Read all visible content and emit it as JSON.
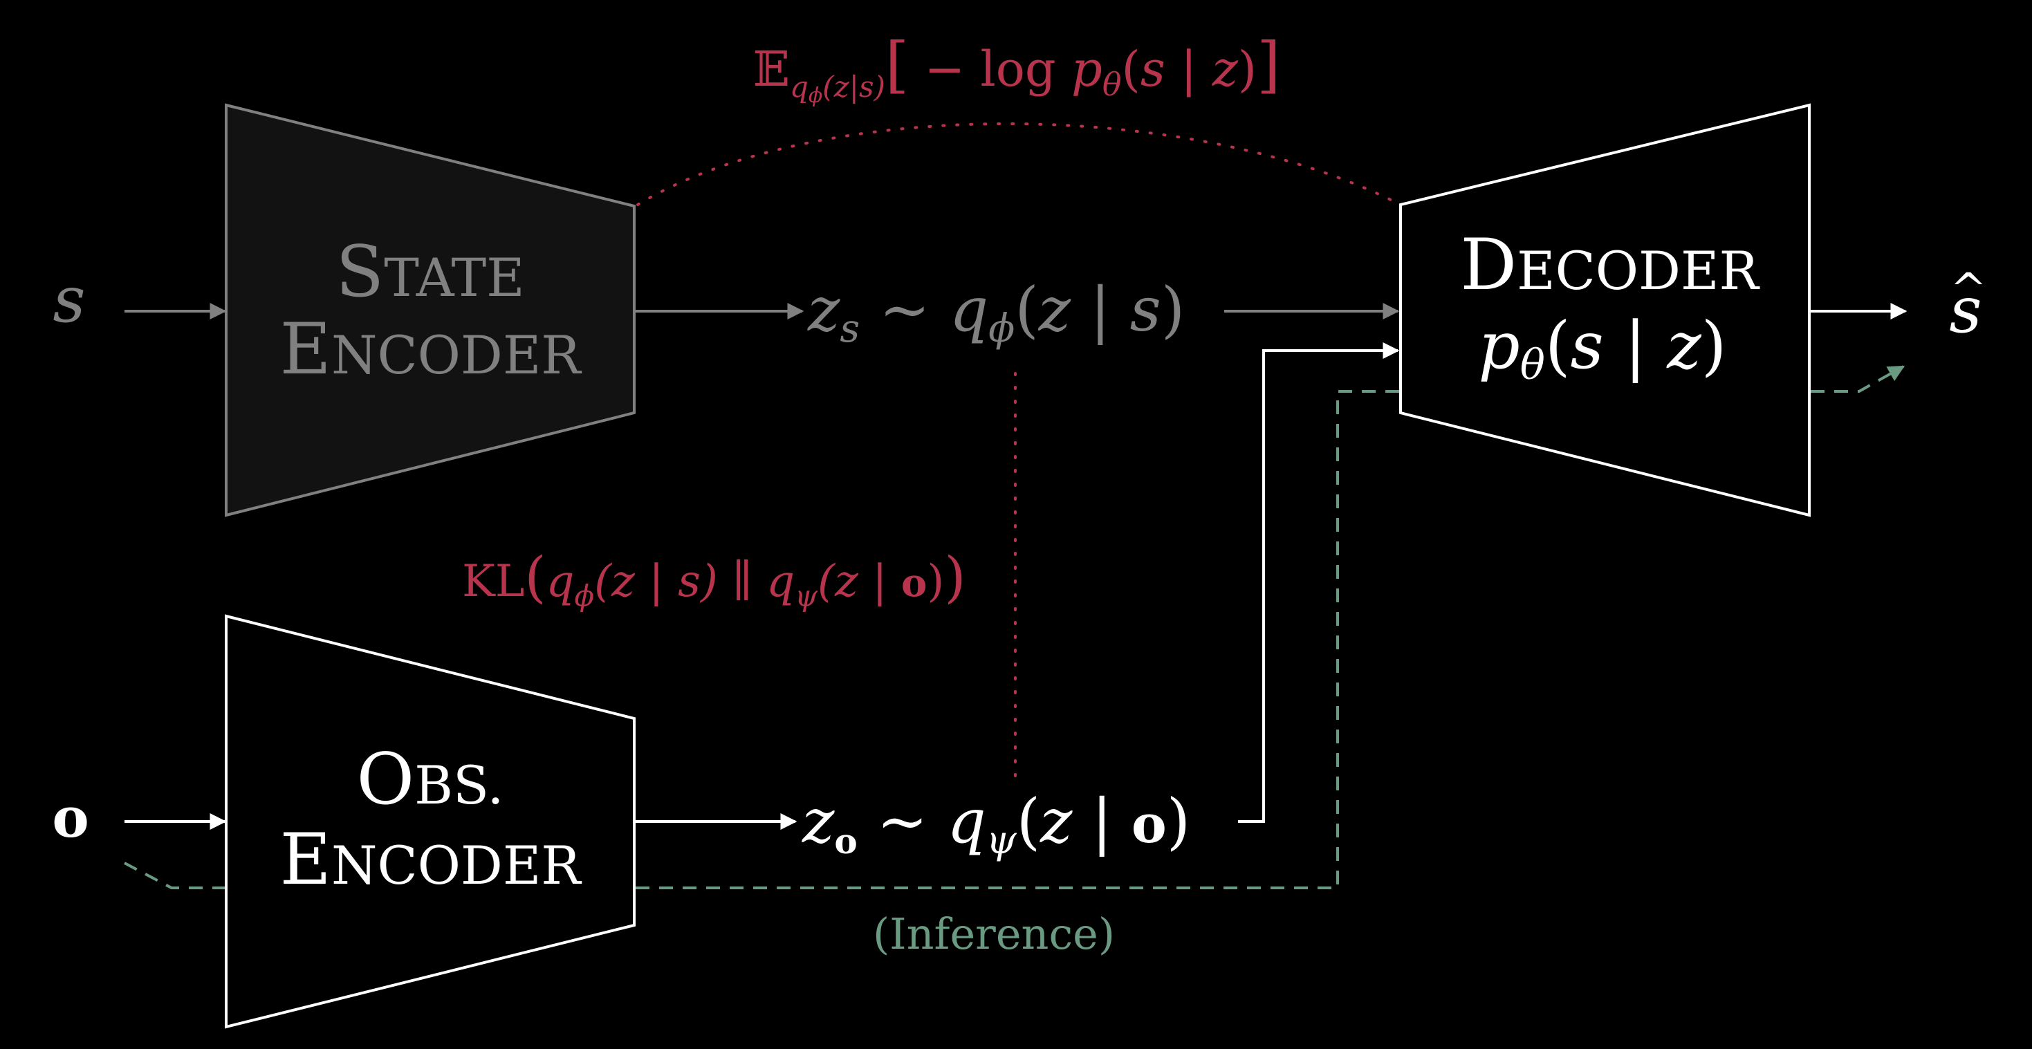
{
  "colors": {
    "background": "#000000",
    "active": "#ffffff",
    "inactive": "#808080",
    "state_encoder_fill": "#121212",
    "loss": "#b8344c",
    "inference": "#6a9a82"
  },
  "inputs": {
    "state": "s",
    "observation": "o"
  },
  "state_encoder": {
    "line1_first": "S",
    "line1_rest": "TATE",
    "line2_first": "E",
    "line2_rest": "NCODER"
  },
  "obs_encoder": {
    "line1_first": "O",
    "line1_rest": "BS.",
    "line2_first": "E",
    "line2_rest": "NCODER"
  },
  "decoder": {
    "line1_first": "D",
    "line1_rest": "ECODER",
    "p": "p",
    "p_sub": "θ",
    "args_open": "(",
    "args_s": "s",
    "args_bar": " | ",
    "args_z": "z",
    "args_close": ")"
  },
  "latent_state": {
    "z": "z",
    "z_sub": "s",
    "tilde": " ∼ ",
    "q": "q",
    "q_sub": "ϕ",
    "open": "(",
    "z2": "z",
    "bar": " | ",
    "cond": "s",
    "close": ")"
  },
  "latent_obs": {
    "z": "z",
    "z_sub": "o",
    "tilde": " ∼ ",
    "q": "q",
    "q_sub": "ψ",
    "open": "(",
    "z2": "z",
    "bar": " | ",
    "cond": "o",
    "close": ")"
  },
  "output": {
    "s": "s",
    "hat": "^"
  },
  "reconstruction_loss": {
    "E": "𝔼",
    "sub_q": "q",
    "sub_phi": "ϕ",
    "sub_args": "(z|s)",
    "lbr": "[",
    "minus": " − log ",
    "p": "p",
    "p_sub": "θ",
    "args_open": "(",
    "args_s": "s",
    "args_bar": " | ",
    "args_z": "z",
    "args_close": ")",
    "rbr": "]"
  },
  "kl_loss": {
    "kl": "KL",
    "open": "(",
    "q1": "q",
    "q1_sub": "ϕ",
    "q1_args": "(z | s)",
    "sep": " ∥ ",
    "q2": "q",
    "q2_sub": "ψ",
    "q2_args_open": "(z | ",
    "q2_bold": "o",
    "q2_args_close": ")",
    "close": ")"
  },
  "inference_label": "(Inference)"
}
